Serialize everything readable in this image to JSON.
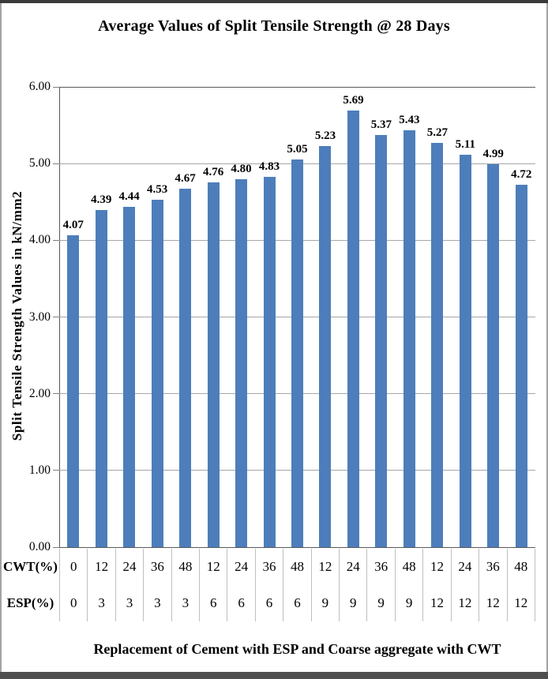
{
  "chart_data": {
    "type": "bar",
    "title": "Average Values of Split Tensile Strength @ 28 Days",
    "ylabel": "Split Tensile Strength Values in kN/mm2",
    "xlabel": "Replacement of Cement with ESP and Coarse aggregate with CWT",
    "ylim": [
      0,
      6
    ],
    "ytick_step": 1,
    "ytick_labels": [
      "0.00",
      "1.00",
      "2.00",
      "3.00",
      "4.00",
      "5.00",
      "6.00"
    ],
    "grid": true,
    "legend_position": "none",
    "bar_color": "#4d7ebb",
    "values": [
      4.07,
      4.39,
      4.44,
      4.53,
      4.67,
      4.76,
      4.8,
      4.83,
      5.05,
      5.23,
      5.69,
      5.37,
      5.43,
      5.27,
      5.11,
      4.99,
      4.72
    ],
    "value_labels": [
      "4.07",
      "4.39",
      "4.44",
      "4.53",
      "4.67",
      "4.76",
      "4.80",
      "4.83",
      "5.05",
      "5.23",
      "5.69",
      "5.37",
      "5.43",
      "5.27",
      "5.11",
      "4.99",
      "4.72"
    ],
    "x_axis_rows": [
      {
        "label": "CWT(%)",
        "values": [
          "0",
          "12",
          "24",
          "36",
          "48",
          "12",
          "24",
          "36",
          "48",
          "12",
          "24",
          "36",
          "48",
          "12",
          "24",
          "36",
          "48"
        ]
      },
      {
        "label": "ESP(%)",
        "values": [
          "0",
          "3",
          "3",
          "3",
          "3",
          "6",
          "6",
          "6",
          "6",
          "9",
          "9",
          "9",
          "9",
          "12",
          "12",
          "12",
          "12"
        ]
      }
    ],
    "colors": {
      "bar": "#4d7ebb",
      "gridline": "#a6a6a6",
      "axis_line": "#595959",
      "table_separator": "#bfbfbf",
      "frame_top": "#3a3a3a",
      "frame_bottom": "#4e4e4e",
      "frame_sides": "#a3a3a3"
    }
  }
}
